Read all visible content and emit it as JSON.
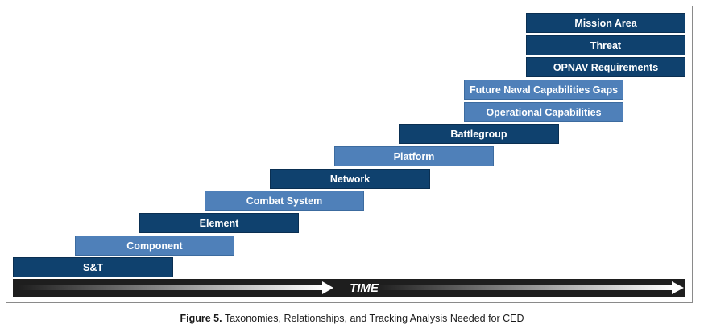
{
  "diagram": {
    "boxes": [
      {
        "id": "mission-area",
        "label": "Mission Area",
        "shade": "dark"
      },
      {
        "id": "threat",
        "label": "Threat",
        "shade": "dark"
      },
      {
        "id": "opnav-requirements",
        "label": "OPNAV Requirements",
        "shade": "dark"
      },
      {
        "id": "future-naval-capabilities-gaps",
        "label": "Future Naval Capabilities Gaps",
        "shade": "light"
      },
      {
        "id": "operational-capabilities",
        "label": "Operational Capabilities",
        "shade": "light"
      },
      {
        "id": "battlegroup",
        "label": "Battlegroup",
        "shade": "dark"
      },
      {
        "id": "platform",
        "label": "Platform",
        "shade": "light"
      },
      {
        "id": "network",
        "label": "Network",
        "shade": "dark"
      },
      {
        "id": "combat-system",
        "label": "Combat System",
        "shade": "light"
      },
      {
        "id": "element",
        "label": "Element",
        "shade": "dark"
      },
      {
        "id": "component",
        "label": "Component",
        "shade": "light"
      },
      {
        "id": "s-and-t",
        "label": "S&T",
        "shade": "dark"
      }
    ],
    "time_axis_label": "TIME"
  },
  "caption": {
    "figure_label": "Figure 5.",
    "text": "Taxonomies, Relationships, and Tracking Analysis Needed for CED"
  },
  "colors": {
    "dark_box": "#0f416e",
    "light_box": "#4f80b9",
    "time_bar": "#1e1e1e"
  }
}
